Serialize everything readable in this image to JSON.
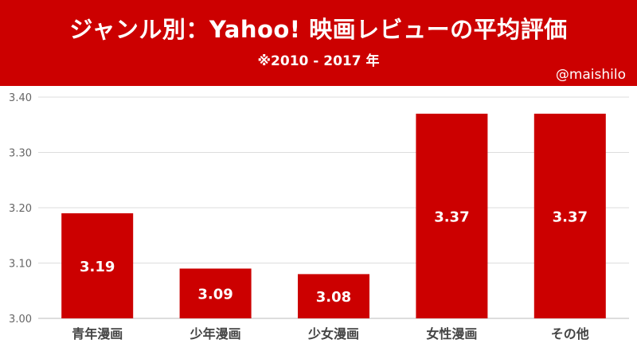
{
  "header": {
    "title": "ジャンル別：Yahoo! 映画レビューの平均評価",
    "subtitle": "※2010 - 2017 年",
    "credit": "@maishilo"
  },
  "colors": {
    "banner": "#cc0000",
    "bar": "#cc0000",
    "grid": "#dddddd",
    "axis_text": "#666666",
    "category_text": "#444444"
  },
  "chart_data": {
    "type": "bar",
    "title": "ジャンル別：Yahoo! 映画レビューの平均評価",
    "subtitle": "※2010 - 2017 年",
    "categories": [
      "青年漫画",
      "少年漫画",
      "少女漫画",
      "女性漫画",
      "その他"
    ],
    "values": [
      3.19,
      3.09,
      3.08,
      3.37,
      3.37
    ],
    "data_labels": [
      "3.19",
      "3.09",
      "3.08",
      "3.37",
      "3.37"
    ],
    "ylim": [
      3.0,
      3.4
    ],
    "yticks": [
      3.0,
      3.1,
      3.2,
      3.3,
      3.4
    ],
    "ytick_labels": [
      "3.00",
      "3.10",
      "3.20",
      "3.30",
      "3.40"
    ],
    "xlabel": "",
    "ylabel": "",
    "grid": true,
    "legend": "none"
  }
}
